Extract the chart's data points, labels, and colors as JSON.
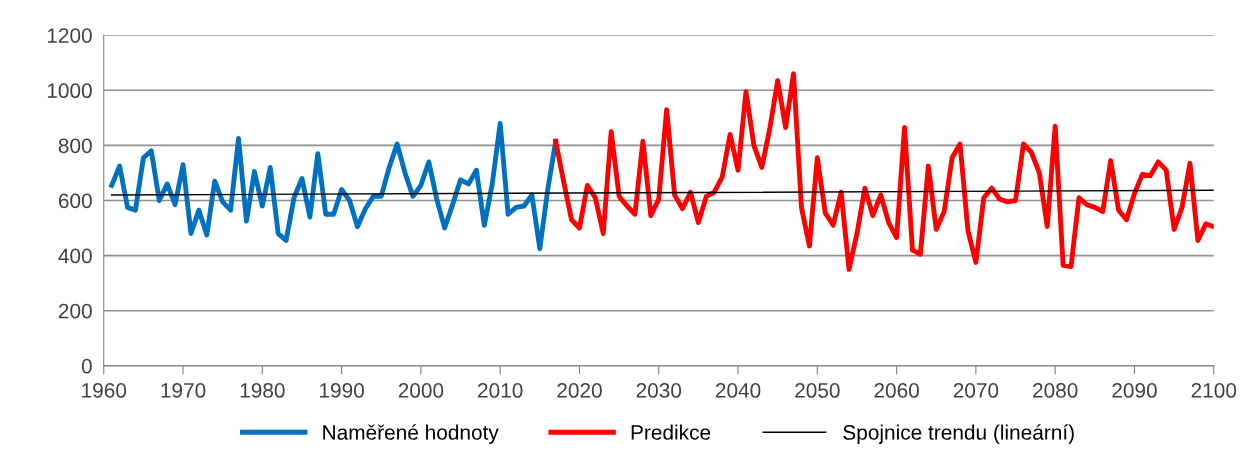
{
  "chart_data": {
    "type": "line",
    "xlim": [
      1960,
      2100
    ],
    "xticks": [
      1960,
      1970,
      1980,
      1990,
      2000,
      2010,
      2020,
      2030,
      2040,
      2050,
      2060,
      2070,
      2080,
      2090,
      2100
    ],
    "ylim": [
      0,
      1200
    ],
    "yticks": [
      0,
      200,
      400,
      600,
      800,
      1000,
      1200
    ],
    "grid": "y",
    "legend": "bottom",
    "marker": "none",
    "line_style": "solid",
    "series": [
      {
        "name": "Naměřené hodnoty",
        "color": "#0070c0",
        "x": [
          1961,
          1962,
          1963,
          1964,
          1965,
          1966,
          1967,
          1968,
          1969,
          1970,
          1971,
          1972,
          1973,
          1974,
          1975,
          1976,
          1977,
          1978,
          1979,
          1980,
          1981,
          1982,
          1983,
          1984,
          1985,
          1986,
          1987,
          1988,
          1989,
          1990,
          1991,
          1992,
          1993,
          1994,
          1995,
          1996,
          1997,
          1998,
          1999,
          2000,
          2001,
          2002,
          2003,
          2004,
          2005,
          2006,
          2007,
          2008,
          2009,
          2010,
          2011,
          2012,
          2013,
          2014,
          2015,
          2016,
          2017
        ],
        "values": [
          655,
          725,
          575,
          565,
          755,
          780,
          600,
          660,
          585,
          730,
          480,
          565,
          475,
          670,
          595,
          565,
          825,
          525,
          705,
          580,
          720,
          480,
          455,
          610,
          680,
          540,
          770,
          550,
          550,
          640,
          600,
          505,
          570,
          615,
          615,
          720,
          805,
          700,
          615,
          655,
          740,
          605,
          500,
          585,
          675,
          660,
          710,
          510,
          660,
          880,
          550,
          575,
          580,
          620,
          425,
          640,
          815
        ]
      },
      {
        "name": "Predikce",
        "color": "#ff0000",
        "x": [
          2017,
          2018,
          2019,
          2020,
          2021,
          2022,
          2023,
          2024,
          2025,
          2026,
          2027,
          2028,
          2029,
          2030,
          2031,
          2032,
          2033,
          2034,
          2035,
          2036,
          2037,
          2038,
          2039,
          2040,
          2041,
          2042,
          2043,
          2044,
          2045,
          2046,
          2047,
          2048,
          2049,
          2050,
          2051,
          2052,
          2053,
          2054,
          2055,
          2056,
          2057,
          2058,
          2059,
          2060,
          2061,
          2062,
          2063,
          2064,
          2065,
          2066,
          2067,
          2068,
          2069,
          2070,
          2071,
          2072,
          2073,
          2074,
          2075,
          2076,
          2077,
          2078,
          2079,
          2080,
          2081,
          2082,
          2083,
          2084,
          2085,
          2086,
          2087,
          2088,
          2089,
          2090,
          2091,
          2092,
          2093,
          2094,
          2095,
          2096,
          2097,
          2098,
          2099,
          2100
        ],
        "values": [
          815,
          670,
          530,
          500,
          655,
          610,
          480,
          850,
          615,
          580,
          550,
          815,
          545,
          605,
          930,
          620,
          570,
          630,
          520,
          615,
          630,
          685,
          840,
          710,
          995,
          800,
          720,
          860,
          1035,
          865,
          1060,
          575,
          435,
          755,
          555,
          510,
          630,
          350,
          480,
          645,
          545,
          620,
          520,
          465,
          865,
          420,
          405,
          725,
          495,
          560,
          755,
          805,
          490,
          375,
          610,
          645,
          605,
          595,
          600,
          805,
          775,
          700,
          505,
          870,
          365,
          360,
          610,
          585,
          575,
          560,
          745,
          565,
          530,
          625,
          695,
          690,
          740,
          710,
          495,
          575,
          735,
          455,
          515,
          505
        ]
      },
      {
        "name": "Spojnice trendu (lineární)",
        "color": "#000000",
        "x": [
          1961,
          2100
        ],
        "values": [
          620,
          637
        ]
      }
    ]
  }
}
